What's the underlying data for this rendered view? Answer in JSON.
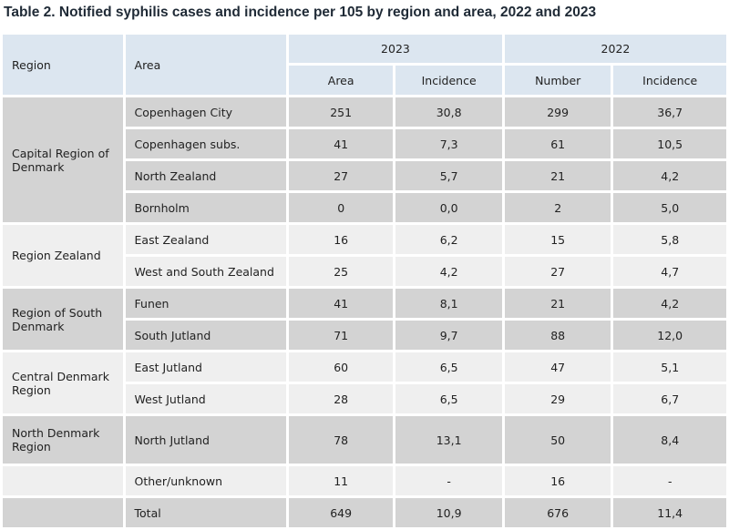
{
  "title": "Table 2. Notified syphilis cases and incidence per 105 by region and area, 2022 and 2023",
  "headers": {
    "region": "Region",
    "area": "Area",
    "year_a": "2023",
    "year_b": "2022",
    "sub": [
      "Area",
      "Incidence",
      "Number",
      "Incidence"
    ]
  },
  "rows": [
    {
      "region": "Capital Region of Denmark",
      "area": "Copenhagen City",
      "v": [
        "251",
        "30,8",
        "299",
        "36,7"
      ]
    },
    {
      "region": "",
      "area": "Copenhagen subs.",
      "v": [
        "41",
        "7,3",
        "61",
        "10,5"
      ]
    },
    {
      "region": "",
      "area": "North Zealand",
      "v": [
        "27",
        "5,7",
        "21",
        "4,2"
      ]
    },
    {
      "region": "",
      "area": "Bornholm",
      "v": [
        "0",
        "0,0",
        "2",
        "5,0"
      ]
    },
    {
      "region": "Region Zealand",
      "area": "East Zealand",
      "v": [
        "16",
        "6,2",
        "15",
        "5,8"
      ]
    },
    {
      "region": "",
      "area": "West and South Zealand",
      "v": [
        "25",
        "4,2",
        "27",
        "4,7"
      ]
    },
    {
      "region": "Region of South Denmark",
      "area": "Funen",
      "v": [
        "41",
        "8,1",
        "21",
        "4,2"
      ]
    },
    {
      "region": "",
      "area": "South Jutland",
      "v": [
        "71",
        "9,7",
        "88",
        "12,0"
      ]
    },
    {
      "region": "Central Denmark Region",
      "area": "East Jutland",
      "v": [
        "60",
        "6,5",
        "47",
        "5,1"
      ]
    },
    {
      "region": "",
      "area": "West Jutland",
      "v": [
        "28",
        "6,5",
        "29",
        "6,7"
      ]
    },
    {
      "region": "North Denmark Region",
      "area": "North Jutland",
      "v": [
        "78",
        "13,1",
        "50",
        "8,4"
      ]
    },
    {
      "region": "",
      "area": "Other/unknown",
      "v": [
        "11",
        "-",
        "16",
        "-"
      ]
    },
    {
      "region": "",
      "area": "Total",
      "v": [
        "649",
        "10,9",
        "676",
        "11,4"
      ]
    }
  ]
}
